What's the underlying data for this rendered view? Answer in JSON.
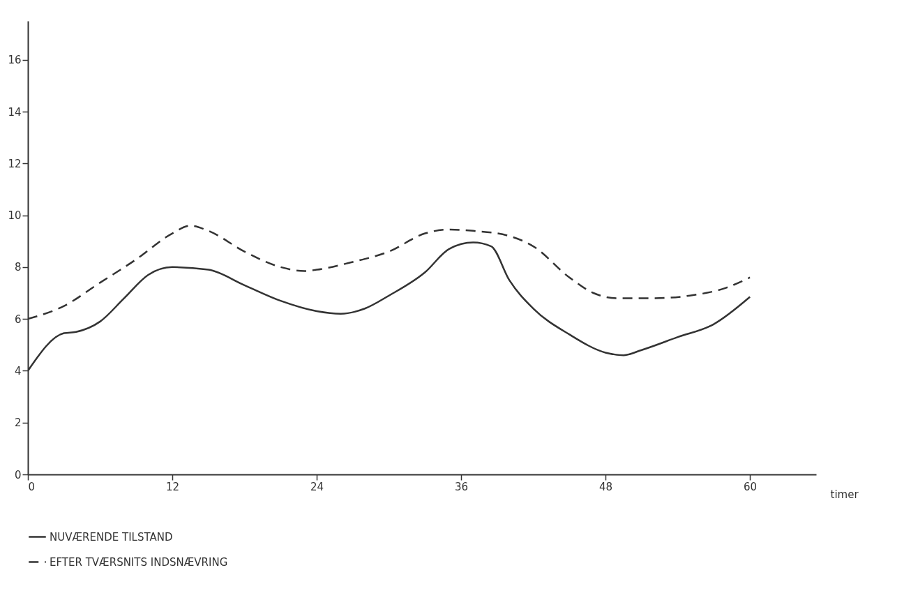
{
  "chart_data": {
    "type": "line",
    "xlabel": "timer",
    "xlim": [
      0,
      65.5
    ],
    "ylim": [
      0,
      17.5
    ],
    "xticks": [
      0,
      12,
      24,
      36,
      48,
      60
    ],
    "yticks": [
      0,
      2,
      4,
      6,
      8,
      10,
      12,
      14,
      16
    ],
    "grid": false,
    "legend": "bottom",
    "marker": "none",
    "series": [
      {
        "name": "NUVÆRENDE  TILSTAND",
        "color": "#333333",
        "line_style": "solid",
        "x": [
          0,
          3,
          4,
          6,
          8,
          10,
          12,
          15,
          18,
          21,
          24,
          26,
          28,
          30,
          33,
          35,
          37,
          38.5,
          40,
          42,
          45,
          48,
          49.5,
          51,
          54,
          57,
          60
        ],
        "values": [
          4.0,
          5.45,
          5.5,
          5.9,
          6.8,
          7.7,
          8.0,
          7.9,
          7.3,
          6.7,
          6.3,
          6.2,
          6.4,
          6.9,
          7.8,
          8.7,
          8.95,
          8.8,
          7.5,
          6.4,
          5.4,
          4.7,
          4.6,
          4.8,
          5.3,
          5.8,
          6.85
        ]
      },
      {
        "name": "EFTER  TVÆRSNITS  INDSNÆVRING",
        "color": "#333333",
        "line_style": "dashed",
        "x": [
          0,
          3,
          6,
          9,
          12,
          13.5,
          15,
          18,
          21,
          23,
          24,
          27,
          30,
          33,
          35,
          37,
          40,
          42,
          45,
          47,
          49,
          52,
          55,
          58,
          60
        ],
        "values": [
          6.0,
          6.5,
          7.4,
          8.3,
          9.3,
          9.6,
          9.4,
          8.6,
          8.0,
          7.85,
          7.9,
          8.2,
          8.6,
          9.3,
          9.45,
          9.4,
          9.2,
          8.8,
          7.6,
          7.0,
          6.8,
          6.8,
          6.9,
          7.2,
          7.6
        ]
      }
    ]
  }
}
